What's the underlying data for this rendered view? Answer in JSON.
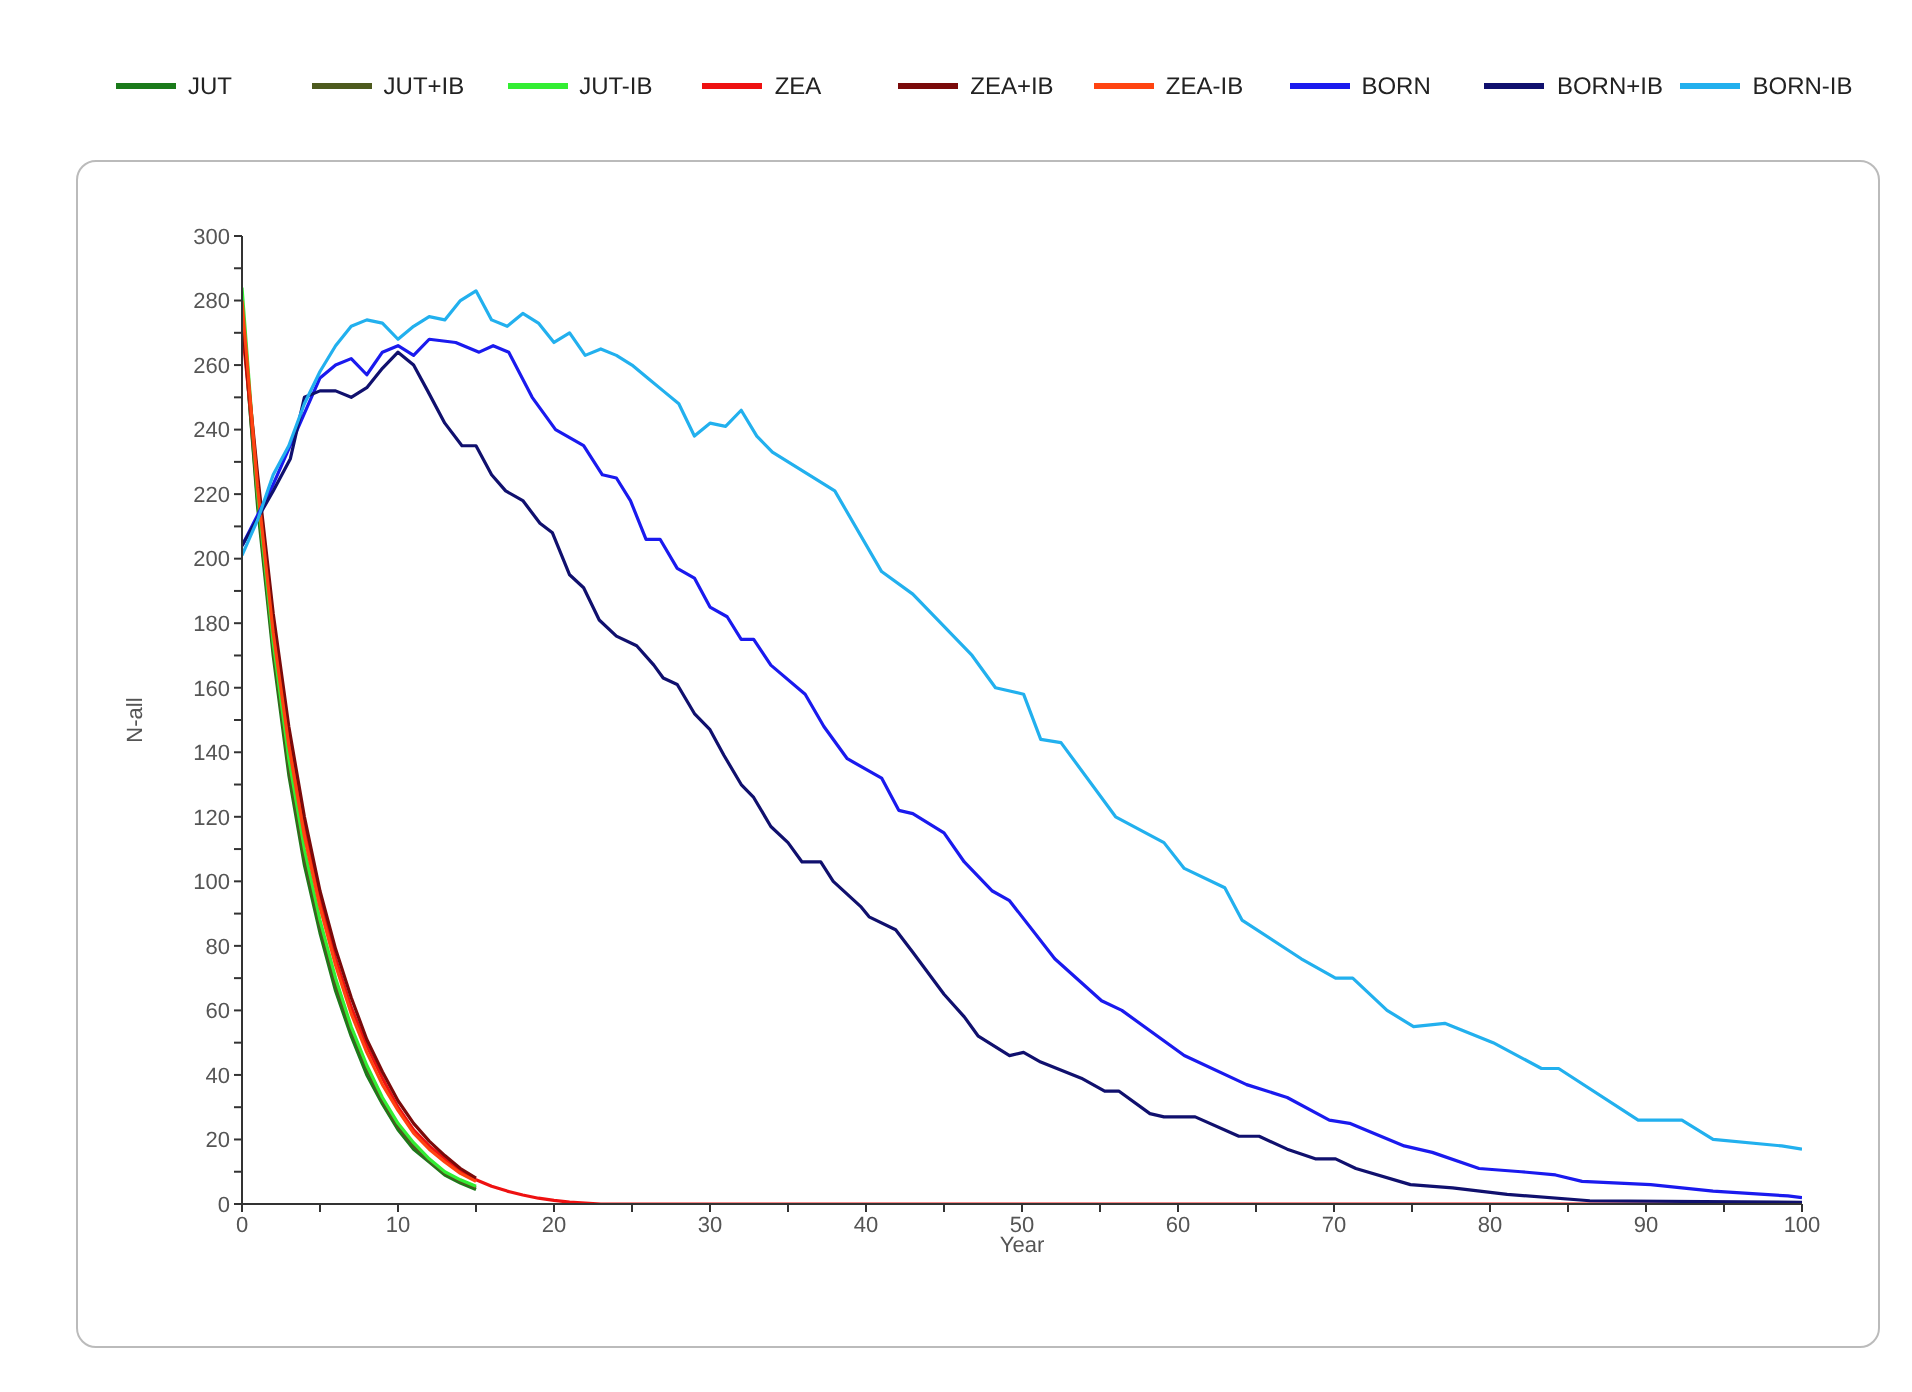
{
  "chart_data": {
    "type": "line",
    "xlabel": "Year",
    "ylabel": "N-all",
    "legend": "top",
    "grid": false,
    "marker": "none",
    "line_style": "solid",
    "xlim": [
      0,
      100
    ],
    "xticks": [
      0,
      {
        "value": 5,
        "label": null
      },
      10,
      {
        "value": 15,
        "label": null
      },
      20,
      {
        "value": 25,
        "label": null
      },
      30,
      {
        "value": 35,
        "label": null
      },
      40,
      {
        "value": 45,
        "label": null
      },
      50,
      {
        "value": 55,
        "label": null
      },
      60,
      {
        "value": 65,
        "label": null
      },
      70,
      {
        "value": 75,
        "label": null
      },
      80,
      {
        "value": 85,
        "label": null
      },
      90,
      {
        "value": 95,
        "label": null
      },
      100
    ],
    "ylim": [
      0,
      300
    ],
    "yticks": [
      0,
      {
        "value": 10,
        "label": null
      },
      20,
      {
        "value": 30,
        "label": null
      },
      40,
      {
        "value": 50,
        "label": null
      },
      60,
      {
        "value": 70,
        "label": null
      },
      80,
      {
        "value": 90,
        "label": null
      },
      100,
      {
        "value": 110,
        "label": null
      },
      120,
      {
        "value": 130,
        "label": null
      },
      140,
      {
        "value": 150,
        "label": null
      },
      160,
      {
        "value": 170,
        "label": null
      },
      180,
      {
        "value": 190,
        "label": null
      },
      200,
      {
        "value": 210,
        "label": null
      },
      220,
      {
        "value": 230,
        "label": null
      },
      240,
      {
        "value": 250,
        "label": null
      },
      260,
      {
        "value": 270,
        "label": null
      },
      280,
      {
        "value": 290,
        "label": null
      },
      300
    ],
    "series": [
      {
        "name": "JUT",
        "color": "#1a7a1a",
        "x": [
          0,
          1,
          2,
          3,
          4,
          5,
          6,
          7,
          8,
          9,
          10,
          11,
          12,
          13,
          14,
          15
        ],
        "values": [
          278,
          216,
          170,
          133,
          105,
          84,
          66,
          52,
          40,
          31,
          23,
          17,
          13,
          9,
          6.5,
          4.5
        ]
      },
      {
        "name": "JUT+IB",
        "color": "#4d5a1e",
        "x": [
          0,
          1,
          2,
          3,
          4,
          5,
          6,
          7,
          8,
          9,
          10,
          11,
          12,
          13,
          14,
          15
        ],
        "values": [
          276,
          218,
          172,
          135,
          107,
          86,
          68,
          54,
          42,
          32,
          24,
          18,
          13.5,
          9.5,
          7,
          5
        ]
      },
      {
        "name": "JUT-IB",
        "color": "#33ee33",
        "x": [
          0,
          1,
          2,
          3,
          4,
          5,
          6,
          7,
          8,
          9,
          10,
          11,
          12,
          13,
          14,
          15
        ],
        "values": [
          284,
          220,
          174,
          138,
          110,
          88,
          70,
          55,
          43,
          33,
          25,
          19,
          14,
          10,
          7.5,
          5.5
        ]
      },
      {
        "name": "ZEA",
        "color": "#ee1111",
        "x": [
          0,
          1,
          2,
          3,
          4,
          5,
          6,
          7,
          8,
          9,
          10,
          11,
          12,
          13,
          14,
          15,
          16,
          17,
          18,
          19,
          20,
          21,
          22,
          23,
          100
        ],
        "values": [
          272,
          224,
          180,
          145,
          117,
          94,
          76,
          61,
          49,
          39,
          30,
          23,
          18,
          14,
          10,
          7.5,
          5.5,
          4,
          2.8,
          1.8,
          1.1,
          0.6,
          0.3,
          0,
          0
        ]
      },
      {
        "name": "ZEA+IB",
        "color": "#7a0a0a",
        "x": [
          0,
          1,
          2,
          3,
          4,
          5,
          6,
          7,
          8,
          9,
          10,
          11,
          12,
          13,
          14,
          15
        ],
        "values": [
          274,
          226,
          183,
          148,
          120,
          97,
          79,
          64,
          51,
          41,
          32,
          25,
          19.5,
          15,
          11,
          8
        ]
      },
      {
        "name": "ZEA-IB",
        "color": "#ff4411",
        "x": [
          0,
          1,
          2,
          3,
          4,
          5,
          6,
          7,
          8,
          9,
          10,
          11,
          12,
          13,
          14,
          15
        ],
        "values": [
          280,
          222,
          177,
          142,
          114,
          92,
          74,
          59,
          47,
          37,
          29,
          22,
          17,
          13,
          9.5,
          7
        ]
      },
      {
        "name": "BORN",
        "color": "#1a1aee",
        "x": [
          0,
          2,
          4,
          5,
          6,
          7,
          8,
          9,
          10,
          11,
          12,
          13.7,
          15.2,
          16.1,
          17.1,
          18.6,
          20.1,
          21.9,
          23.1,
          24,
          24.9,
          25.9,
          26.8,
          27.9,
          29,
          30,
          31.1,
          32,
          32.8,
          33.9,
          36.1,
          37.3,
          38.8,
          41,
          42.1,
          43,
          45,
          46.3,
          48.1,
          49.2,
          52.1,
          55.1,
          56.4,
          60.4,
          64.4,
          67,
          69.7,
          71,
          74.5,
          76.3,
          79.3,
          82,
          84.2,
          85.9,
          90.3,
          94.3,
          99.1,
          100
        ],
        "values": [
          204,
          223,
          245,
          256,
          260,
          262,
          257,
          264,
          266,
          263,
          268,
          267,
          264,
          266,
          264,
          250,
          240,
          235,
          226,
          225,
          218,
          206,
          206,
          197,
          194,
          185,
          182,
          175,
          175,
          167,
          158,
          148,
          138,
          132,
          122,
          121,
          115,
          106,
          97,
          94,
          76,
          63,
          60,
          46,
          37,
          33,
          26,
          25,
          18,
          16,
          11,
          10,
          9,
          7,
          6,
          4,
          2.5,
          2
        ]
      },
      {
        "name": "BORN+IB",
        "color": "#10106e",
        "x": [
          0,
          2,
          3.1,
          4,
          5,
          6,
          7,
          8,
          9,
          10,
          11,
          11.9,
          13,
          14.1,
          15,
          16,
          16.9,
          18,
          19.1,
          19.9,
          21,
          21.9,
          22.9,
          24,
          25.3,
          26.4,
          27,
          27.9,
          29,
          30,
          30.9,
          32,
          32.8,
          33.9,
          35,
          35.9,
          37.1,
          37.9,
          39.7,
          40.2,
          41.9,
          43,
          45,
          46.3,
          47.2,
          49.2,
          50.1,
          51.2,
          53.8,
          55.3,
          56.2,
          58.2,
          59.1,
          61.1,
          63.9,
          65.2,
          67,
          68.8,
          70.1,
          71.4,
          74.9,
          77.6,
          81.1,
          86.4,
          100
        ],
        "values": [
          204,
          221,
          231,
          250,
          252,
          252,
          250,
          253,
          259,
          264,
          260,
          252,
          242,
          235,
          235,
          226,
          221,
          218,
          211,
          208,
          195,
          191,
          181,
          176,
          173,
          167,
          163,
          161,
          152,
          147,
          139,
          130,
          126,
          117,
          112,
          106,
          106,
          100,
          92,
          89,
          85,
          78,
          65,
          58,
          52,
          46,
          47,
          44,
          39,
          35,
          35,
          28,
          27,
          27,
          21,
          21,
          17,
          14,
          14,
          11,
          6,
          5,
          3,
          1,
          0.5
        ]
      },
      {
        "name": "BORN-IB",
        "color": "#22b0ee",
        "x": [
          0,
          1,
          2,
          3,
          4,
          5,
          6,
          7,
          8,
          9,
          10,
          11,
          12,
          13,
          14,
          15,
          16,
          17,
          18,
          19,
          20,
          21,
          22,
          23,
          24,
          25,
          26,
          27,
          28,
          29,
          30,
          31,
          32,
          33,
          34,
          38,
          41,
          43,
          46.8,
          48.3,
          50.1,
          51.2,
          52.5,
          56,
          59.1,
          60.4,
          63,
          64.1,
          67.9,
          70.1,
          71.2,
          73.4,
          75.1,
          77.1,
          80.2,
          83.3,
          84.4,
          89.5,
          92.3,
          94.3,
          98.7,
          100
        ],
        "values": [
          201,
          212,
          226,
          235,
          248,
          258,
          266,
          272,
          274,
          273,
          268,
          272,
          275,
          274,
          280,
          283,
          274,
          272,
          276,
          273,
          267,
          270,
          263,
          265,
          263,
          260,
          256,
          252,
          248,
          238,
          242,
          241,
          246,
          238,
          233,
          221,
          196,
          189,
          170,
          160,
          158,
          144,
          143,
          120,
          112,
          104,
          98,
          88,
          76,
          70,
          70,
          60,
          55,
          56,
          50,
          42,
          42,
          26,
          26,
          20,
          18,
          17
        ]
      }
    ]
  }
}
